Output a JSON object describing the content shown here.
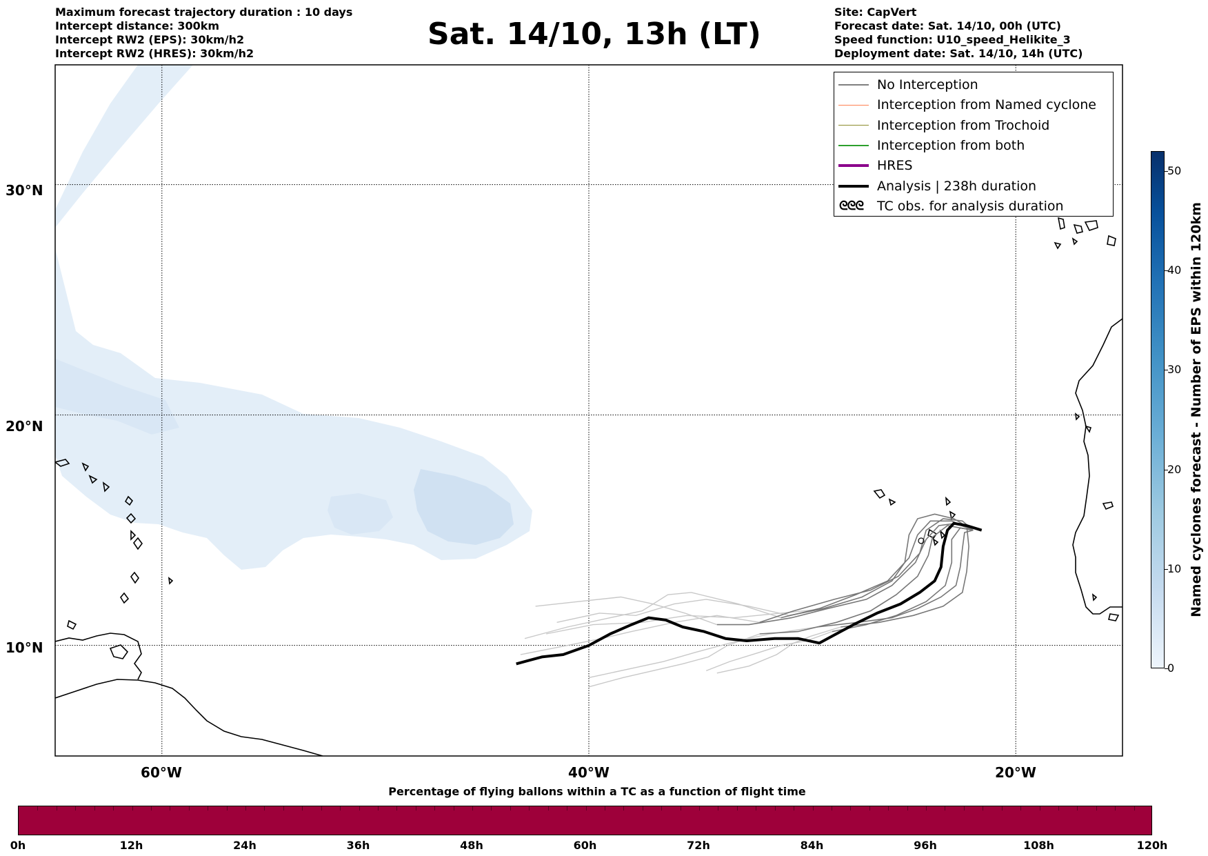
{
  "header": {
    "left_lines": [
      "Maximum forecast trajectory duration : 10 days",
      "Intercept distance: 300km",
      "Intercept RW2 (EPS):  30km/h2",
      "Intercept RW2 (HRES): 30km/h2"
    ],
    "title": "Sat. 14/10, 13h (LT)",
    "right_lines": [
      "Site: CapVert",
      "Forecast date: Sat. 14/10, 00h (UTC)",
      "Speed function: U10_speed_Helikite_3",
      "Deployment date: Sat. 14/10, 14h (UTC)"
    ]
  },
  "map": {
    "lat_ticks": [
      "30°N",
      "20°N",
      "10°N"
    ],
    "lon_ticks": [
      "60°W",
      "40°W",
      "20°W"
    ],
    "extent": {
      "lon_min": -65,
      "lon_max": -15,
      "lat_min": 5.2,
      "lat_max": 35.2
    },
    "colors": {
      "ocean": "#ffffff",
      "cyclone_shade_light": "#e3eef8",
      "cyclone_shade_mid": "#d0e1f2",
      "no_interception": "#777777",
      "eps_far": "#c8c8c8",
      "analysis": "#000000"
    },
    "analysis_track": [
      [
        -21.6,
        15.0
      ],
      [
        -22.3,
        15.2
      ],
      [
        -22.9,
        15.3
      ],
      [
        -23.2,
        15.0
      ],
      [
        -23.4,
        14.3
      ],
      [
        -23.5,
        13.4
      ],
      [
        -23.8,
        12.8
      ],
      [
        -24.5,
        12.3
      ],
      [
        -25.4,
        11.8
      ],
      [
        -26.5,
        11.4
      ],
      [
        -27.6,
        10.9
      ],
      [
        -28.6,
        10.4
      ],
      [
        -29.2,
        10.1
      ],
      [
        -30.2,
        10.3
      ],
      [
        -31.3,
        10.3
      ],
      [
        -32.6,
        10.2
      ],
      [
        -33.6,
        10.3
      ],
      [
        -34.6,
        10.6
      ],
      [
        -35.6,
        10.8
      ],
      [
        -36.4,
        11.1
      ],
      [
        -37.2,
        11.2
      ],
      [
        -38.0,
        10.9
      ],
      [
        -39.0,
        10.5
      ],
      [
        -40.0,
        10.0
      ],
      [
        -41.2,
        9.6
      ],
      [
        -42.2,
        9.5
      ],
      [
        -43.4,
        9.2
      ]
    ],
    "ensemble_tracks": [
      [
        [
          -22.0,
          15.0
        ],
        [
          -22.8,
          15.3
        ],
        [
          -23.6,
          15.2
        ],
        [
          -24.2,
          14.6
        ],
        [
          -24.7,
          13.6
        ],
        [
          -25.8,
          12.6
        ],
        [
          -27.0,
          12.0
        ],
        [
          -28.8,
          11.6
        ],
        [
          -30.5,
          11.2
        ],
        [
          -32.5,
          10.9
        ],
        [
          -34.0,
          10.9
        ]
      ],
      [
        [
          -22.0,
          15.0
        ],
        [
          -23.0,
          15.4
        ],
        [
          -24.0,
          15.4
        ],
        [
          -24.6,
          14.8
        ],
        [
          -25.0,
          13.8
        ],
        [
          -26.0,
          12.8
        ],
        [
          -27.5,
          12.2
        ],
        [
          -29.2,
          11.6
        ],
        [
          -31.0,
          11.2
        ]
      ],
      [
        [
          -22.0,
          15.0
        ],
        [
          -22.5,
          15.4
        ],
        [
          -23.4,
          15.5
        ],
        [
          -24.2,
          15.0
        ],
        [
          -24.5,
          14.0
        ],
        [
          -25.5,
          13.0
        ],
        [
          -26.8,
          12.4
        ],
        [
          -28.5,
          12.0
        ],
        [
          -30.4,
          11.5
        ],
        [
          -32.0,
          11.0
        ]
      ],
      [
        [
          -22.0,
          15.0
        ],
        [
          -22.4,
          14.9
        ],
        [
          -22.5,
          14.2
        ],
        [
          -22.6,
          13.4
        ],
        [
          -22.8,
          12.6
        ],
        [
          -23.5,
          12.1
        ],
        [
          -24.6,
          11.6
        ],
        [
          -25.8,
          11.2
        ],
        [
          -27.4,
          11.0
        ],
        [
          -29.3,
          10.8
        ]
      ],
      [
        [
          -22.0,
          15.0
        ],
        [
          -22.3,
          15.2
        ],
        [
          -22.2,
          14.3
        ],
        [
          -22.3,
          13.2
        ],
        [
          -22.5,
          12.3
        ],
        [
          -23.4,
          11.7
        ],
        [
          -24.8,
          11.3
        ],
        [
          -26.4,
          11.0
        ],
        [
          -28.2,
          10.8
        ]
      ],
      [
        [
          -22.0,
          15.0
        ],
        [
          -22.9,
          15.5
        ],
        [
          -23.8,
          15.7
        ],
        [
          -24.6,
          15.5
        ],
        [
          -25.0,
          14.8
        ],
        [
          -25.2,
          13.6
        ],
        [
          -25.8,
          12.8
        ],
        [
          -27.2,
          12.1
        ],
        [
          -29.0,
          11.6
        ],
        [
          -30.6,
          11.3
        ]
      ],
      [
        [
          -22.0,
          15.0
        ],
        [
          -23.2,
          15.2
        ],
        [
          -23.9,
          14.7
        ],
        [
          -24.1,
          13.9
        ],
        [
          -24.6,
          13.0
        ],
        [
          -25.6,
          12.2
        ],
        [
          -26.8,
          11.5
        ],
        [
          -28.4,
          11.0
        ],
        [
          -30.2,
          10.6
        ],
        [
          -32.0,
          10.5
        ]
      ],
      [
        [
          -22.0,
          15.0
        ],
        [
          -22.6,
          15.1
        ],
        [
          -23.0,
          14.6
        ],
        [
          -23.0,
          13.6
        ],
        [
          -23.3,
          12.6
        ],
        [
          -24.2,
          11.9
        ],
        [
          -25.6,
          11.3
        ],
        [
          -27.0,
          10.9
        ],
        [
          -28.6,
          10.6
        ]
      ]
    ],
    "eps_far_tracks": [
      [
        [
          -34.0,
          10.9
        ],
        [
          -35.5,
          11.4
        ],
        [
          -37.0,
          11.8
        ],
        [
          -38.5,
          12.1
        ],
        [
          -40.5,
          11.9
        ],
        [
          -42.5,
          11.7
        ]
      ],
      [
        [
          -31.0,
          11.2
        ],
        [
          -33.0,
          11.8
        ],
        [
          -35.2,
          12.3
        ],
        [
          -36.3,
          12.2
        ],
        [
          -37.5,
          11.5
        ],
        [
          -39.0,
          11.2
        ],
        [
          -41.0,
          10.8
        ],
        [
          -43.0,
          10.3
        ]
      ],
      [
        [
          -32.0,
          11.0
        ],
        [
          -34.0,
          11.3
        ],
        [
          -36.0,
          11.0
        ],
        [
          -38.0,
          10.6
        ],
        [
          -39.4,
          10.3
        ],
        [
          -41.0,
          10.0
        ],
        [
          -43.2,
          9.6
        ]
      ],
      [
        [
          -29.3,
          10.8
        ],
        [
          -31.5,
          10.5
        ],
        [
          -33.0,
          10.2
        ],
        [
          -35.0,
          9.7
        ],
        [
          -36.5,
          9.3
        ],
        [
          -38.0,
          9.0
        ],
        [
          -40.0,
          8.6
        ]
      ],
      [
        [
          -28.2,
          10.8
        ],
        [
          -29.6,
          10.4
        ],
        [
          -30.4,
          10.1
        ],
        [
          -31.2,
          9.6
        ],
        [
          -32.5,
          9.1
        ],
        [
          -34.0,
          8.8
        ]
      ],
      [
        [
          -30.6,
          11.3
        ],
        [
          -32.5,
          11.7
        ],
        [
          -34.5,
          12.0
        ],
        [
          -36.0,
          11.8
        ],
        [
          -37.8,
          11.3
        ],
        [
          -39.5,
          11.4
        ],
        [
          -41.5,
          11.0
        ]
      ],
      [
        [
          -32.0,
          10.5
        ],
        [
          -33.5,
          10.0
        ],
        [
          -34.4,
          9.5
        ],
        [
          -35.6,
          9.2
        ],
        [
          -37.0,
          8.9
        ],
        [
          -38.4,
          8.6
        ],
        [
          -40.0,
          8.2
        ]
      ],
      [
        [
          -28.6,
          10.6
        ],
        [
          -29.8,
          10.2
        ],
        [
          -31.0,
          10.0
        ],
        [
          -32.0,
          9.7
        ],
        [
          -33.4,
          9.3
        ],
        [
          -34.5,
          8.9
        ]
      ],
      [
        [
          -28.8,
          11.6
        ],
        [
          -31.0,
          11.4
        ],
        [
          -33.2,
          11.2
        ],
        [
          -35.4,
          11.3
        ],
        [
          -37.5,
          11.0
        ],
        [
          -39.8,
          10.9
        ],
        [
          -42.0,
          10.5
        ]
      ]
    ],
    "legend": [
      {
        "label": "No Interception",
        "color": "#7f7f7f",
        "width": 1.5,
        "kind": "line"
      },
      {
        "label": "Interception from Named cyclone",
        "color": "#ff7f50",
        "width": 1.5,
        "kind": "line"
      },
      {
        "label": "Interception from Trochoid",
        "color": "#8b8b2a",
        "width": 1.5,
        "kind": "line"
      },
      {
        "label": "Interception from both",
        "color": "#2ca02c",
        "width": 1.5,
        "kind": "line"
      },
      {
        "label": "HRES",
        "color": "#8b008b",
        "width": 4,
        "kind": "line"
      },
      {
        "label": "Analysis | 238h duration",
        "color": "#000000",
        "width": 4,
        "kind": "line"
      },
      {
        "label": "TC obs. for analysis duration",
        "color": "#000000",
        "width": 0,
        "kind": "glyph",
        "glyph": "ᘓᘓᘓ"
      }
    ]
  },
  "colorbar": {
    "label": "Named cyclones forecast - Number of EPS within 120km",
    "ticks": [
      "0",
      "10",
      "20",
      "30",
      "40",
      "50"
    ],
    "range": [
      0,
      52
    ]
  },
  "time_bar": {
    "title": "Percentage of flying ballons within a TC as a function of flight time",
    "ticks": [
      "0h",
      "12h",
      "24h",
      "36h",
      "48h",
      "60h",
      "72h",
      "84h",
      "96h",
      "108h",
      "120h"
    ],
    "color": "#9e003a",
    "value_percent": 100
  }
}
